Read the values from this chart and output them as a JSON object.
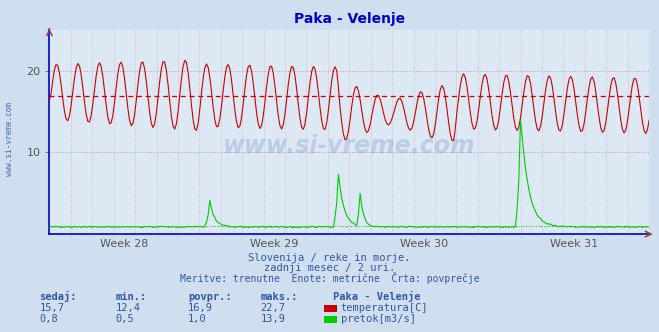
{
  "title": "Paka - Velenje",
  "title_color": "#0000cc",
  "bg_color": "#d0dff0",
  "plot_bg_color": "#dce8f4",
  "grid_color": "#cc9999",
  "ylabel_left": "",
  "x_tick_labels": [
    "Week 28",
    "Week 29",
    "Week 30",
    "Week 31"
  ],
  "ylim": [
    0,
    25
  ],
  "yticks": [
    10,
    20
  ],
  "temp_color": "#cc0000",
  "flow_color": "#00cc00",
  "avg_line_color": "#cc0000",
  "avg_temp": 16.9,
  "avg_flow": 1.0,
  "n_points": 360,
  "temp_min": 12.4,
  "temp_max": 22.7,
  "flow_max": 13.9,
  "subtitle1": "Slovenija / reke in morje.",
  "subtitle2": "zadnji mesec / 2 uri.",
  "subtitle3": "Meritve: trenutne  Enote: metrične  Črta: povprečje",
  "table_headers": [
    "sedaj:",
    "min.:",
    "povpr.:",
    "maks.:"
  ],
  "station_name": "Paka - Velenje",
  "temp_row": [
    "15,7",
    "12,4",
    "16,9",
    "22,7"
  ],
  "flow_row": [
    "0,8",
    "0,5",
    "1,0",
    "13,9"
  ],
  "temp_label": "temperatura[C]",
  "flow_label": "pretok[m3/s]",
  "text_color": "#3355aa",
  "table_color": "#3355aa",
  "watermark": "www.si-vreme.com",
  "watermark_color": "#3355aa",
  "watermark_alpha": 0.18,
  "left_label": "www.si-vreme.com",
  "left_label_color": "#3355aa",
  "axis_color": "#0000cc",
  "spine_color": "#0000cc"
}
